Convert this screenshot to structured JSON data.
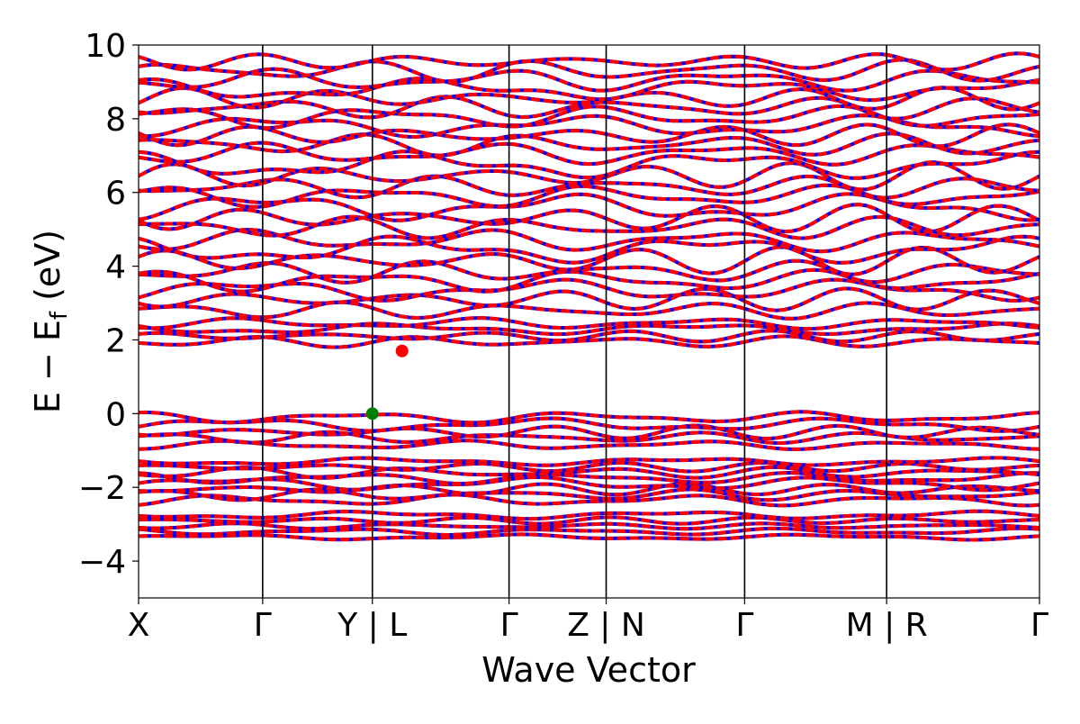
{
  "chart_data": {
    "type": "line",
    "title": "",
    "xlabel": "Wave Vector",
    "ylabel_main": "E − E",
    "ylabel_sub": "f",
    "ylabel_unit": " (eV)",
    "ylim": [
      -5,
      10
    ],
    "yticks": [
      -4,
      -2,
      0,
      2,
      4,
      6,
      8,
      10
    ],
    "ytick_labels": [
      "−4",
      "−2",
      "0",
      "2",
      "4",
      "6",
      "8",
      "10"
    ],
    "xlim": [
      0,
      1
    ],
    "kpoints": [
      {
        "label": "X",
        "x": 0.0
      },
      {
        "label": "Γ",
        "x": 0.1377
      },
      {
        "label": "Y | L",
        "x": 0.2595
      },
      {
        "label": "Γ",
        "x": 0.4112
      },
      {
        "label": "Z | N",
        "x": 0.519
      },
      {
        "label": "Γ",
        "x": 0.6727
      },
      {
        "label": "M | R",
        "x": 0.8303
      },
      {
        "label": "Γ",
        "x": 1.0
      }
    ],
    "grid": false,
    "legend": "none",
    "series": [
      {
        "color": "#0000ff",
        "style": "solid"
      },
      {
        "color": "#ff0000",
        "style": "dashed"
      }
    ],
    "bands": [
      {
        "base": -3.35,
        "amp": 0.05
      },
      {
        "base": -3.2,
        "amp": 0.06
      },
      {
        "base": -3.05,
        "amp": 0.05
      },
      {
        "base": -2.9,
        "amp": 0.06
      },
      {
        "base": -2.75,
        "amp": 0.07
      },
      {
        "base": -2.35,
        "amp": 0.1
      },
      {
        "base": -2.2,
        "amp": 0.1
      },
      {
        "base": -2.05,
        "amp": 0.1
      },
      {
        "base": -1.9,
        "amp": 0.12
      },
      {
        "base": -1.75,
        "amp": 0.1
      },
      {
        "base": -1.6,
        "amp": 0.1
      },
      {
        "base": -1.45,
        "amp": 0.08
      },
      {
        "base": -1.3,
        "amp": 0.07
      },
      {
        "base": -0.85,
        "amp": 0.08
      },
      {
        "base": -0.65,
        "amp": 0.1
      },
      {
        "base": -0.5,
        "amp": 0.12
      },
      {
        "base": -0.3,
        "amp": 0.12
      },
      {
        "base": -0.1,
        "amp": 0.1
      },
      {
        "base": 1.95,
        "amp": 0.1
      },
      {
        "base": 2.1,
        "amp": 0.1
      },
      {
        "base": 2.3,
        "amp": 0.1
      },
      {
        "base": 2.45,
        "amp": 0.1
      },
      {
        "base": 2.8,
        "amp": 0.15
      },
      {
        "base": 3.1,
        "amp": 0.2
      },
      {
        "base": 3.35,
        "amp": 0.2
      },
      {
        "base": 3.6,
        "amp": 0.2
      },
      {
        "base": 3.85,
        "amp": 0.2
      },
      {
        "base": 4.15,
        "amp": 0.25
      },
      {
        "base": 4.45,
        "amp": 0.25
      },
      {
        "base": 4.7,
        "amp": 0.2
      },
      {
        "base": 5.05,
        "amp": 0.2
      },
      {
        "base": 5.3,
        "amp": 0.25
      },
      {
        "base": 5.6,
        "amp": 0.25
      },
      {
        "base": 5.9,
        "amp": 0.2
      },
      {
        "base": 6.15,
        "amp": 0.2
      },
      {
        "base": 6.45,
        "amp": 0.25
      },
      {
        "base": 6.75,
        "amp": 0.25
      },
      {
        "base": 7.05,
        "amp": 0.2
      },
      {
        "base": 7.3,
        "amp": 0.2
      },
      {
        "base": 7.55,
        "amp": 0.2
      },
      {
        "base": 7.8,
        "amp": 0.2
      },
      {
        "base": 8.05,
        "amp": 0.2
      },
      {
        "base": 8.3,
        "amp": 0.2
      },
      {
        "base": 8.55,
        "amp": 0.2
      },
      {
        "base": 8.8,
        "amp": 0.2
      },
      {
        "base": 9.05,
        "amp": 0.2
      },
      {
        "base": 9.3,
        "amp": 0.2
      },
      {
        "base": 9.55,
        "amp": 0.15
      }
    ],
    "markers": [
      {
        "name": "vbm-marker",
        "x": 0.2595,
        "y": 0.0,
        "color": "#008000"
      },
      {
        "name": "cbm-marker",
        "x": 0.2924,
        "y": 1.7,
        "color": "#ff0000"
      }
    ]
  }
}
